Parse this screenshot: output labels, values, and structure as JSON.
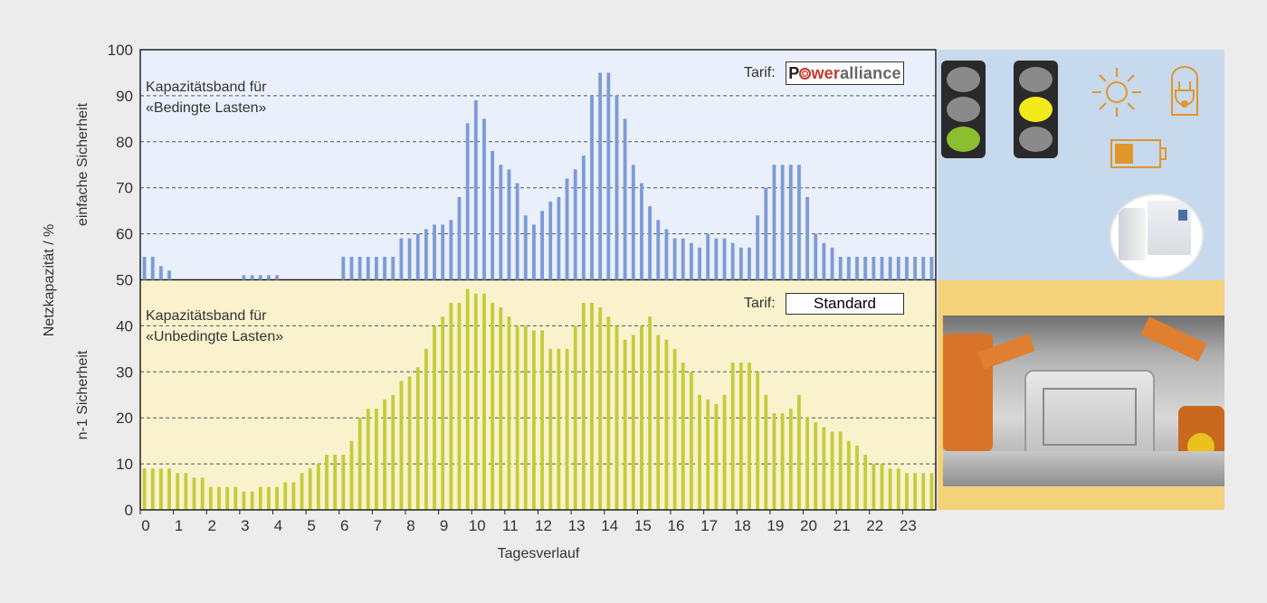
{
  "chart_data": {
    "type": "bar",
    "ylabel": "Netzkapazität / %",
    "xlabel": "Tagesverlauf",
    "ylim": [
      0,
      100
    ],
    "xlim": [
      0,
      24
    ],
    "x_ticks": [
      "0",
      "1",
      "2",
      "3",
      "4",
      "5",
      "6",
      "7",
      "8",
      "9",
      "10",
      "11",
      "12",
      "13",
      "14",
      "15",
      "16",
      "17",
      "18",
      "19",
      "20",
      "21",
      "22",
      "23"
    ],
    "y_ticks": [
      "0",
      "10",
      "20",
      "30",
      "40",
      "50",
      "60",
      "70",
      "80",
      "90",
      "100"
    ],
    "grid": "horizontal dashed",
    "upper_band": {
      "axis_label": "einfache Sicherheit",
      "label_line1": "Kapazitätsband für",
      "label_line2": "«Bedingte Lasten»",
      "tariff_label": "Tarif:",
      "tariff_value": "Poweralliance",
      "color": "#7d9bd6",
      "background": "#eaf0fb",
      "values": [
        55,
        55,
        53,
        52,
        null,
        null,
        null,
        null,
        null,
        null,
        null,
        null,
        51,
        51,
        51,
        51,
        51,
        null,
        null,
        null,
        null,
        null,
        null,
        null,
        55,
        55,
        55,
        55,
        55,
        55,
        55,
        59,
        59,
        60,
        61,
        62,
        62,
        63,
        68,
        84,
        89,
        85,
        78,
        75,
        74,
        71,
        64,
        62,
        65,
        67,
        68,
        72,
        74,
        77,
        90,
        95,
        95,
        90,
        85,
        75,
        71,
        66,
        63,
        61,
        59,
        59,
        58,
        57,
        60,
        59,
        59,
        58,
        57,
        57,
        64,
        70,
        75,
        75,
        75,
        75,
        68,
        60,
        58,
        57,
        55,
        55,
        55,
        55,
        55,
        55,
        55,
        55,
        55,
        55,
        55,
        55
      ]
    },
    "lower_band": {
      "axis_label": "n-1 Sicherheit",
      "label_line1": "Kapazitätsband für",
      "label_line2": "«Unbedingte Lasten»",
      "tariff_label": "Tarif:",
      "tariff_value": "Standard",
      "color": "#c4cc3d",
      "background": "#faf2cd",
      "values": [
        9,
        9,
        9,
        9,
        8,
        8,
        7,
        7,
        5,
        5,
        5,
        5,
        4,
        4,
        5,
        5,
        5,
        6,
        6,
        8,
        9,
        10,
        12,
        12,
        12,
        15,
        20,
        22,
        22,
        24,
        25,
        28,
        29,
        31,
        35,
        40,
        42,
        45,
        45,
        48,
        47,
        47,
        45,
        44,
        42,
        40,
        40,
        39,
        39,
        35,
        35,
        35,
        40,
        45,
        45,
        44,
        42,
        40,
        37,
        38,
        40,
        42,
        38,
        37,
        35,
        32,
        30,
        25,
        24,
        23,
        25,
        32,
        32,
        32,
        30,
        25,
        21,
        21,
        22,
        25,
        20,
        19,
        18,
        17,
        17,
        15,
        14,
        12,
        10,
        10,
        9,
        9,
        8,
        8,
        8,
        8
      ]
    }
  },
  "legend_panels": {
    "traffic_light_green": {
      "active": "green"
    },
    "traffic_light_yellow": {
      "active": "yellow"
    },
    "icons": [
      "sun-icon",
      "plug-icon",
      "battery-icon"
    ],
    "accent_color": "#e0962a"
  }
}
